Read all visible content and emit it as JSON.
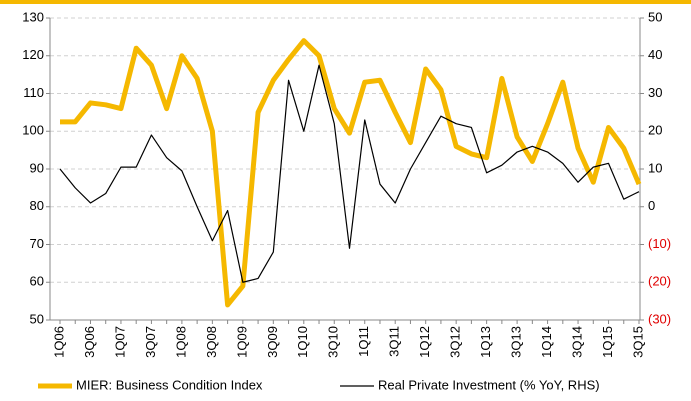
{
  "chart_data": {
    "type": "line",
    "categories": [
      "1Q06",
      null,
      "3Q06",
      null,
      "1Q07",
      null,
      "3Q07",
      null,
      "1Q08",
      null,
      "3Q08",
      null,
      "1Q09",
      null,
      "3Q09",
      null,
      "1Q10",
      null,
      "3Q10",
      null,
      "1Q11",
      null,
      "3Q11",
      null,
      "1Q12",
      null,
      "3Q12",
      null,
      "1Q13",
      null,
      "3Q13",
      null,
      "1Q14",
      null,
      "3Q14",
      null,
      "1Q15",
      null,
      "3Q15"
    ],
    "series": [
      {
        "name": "MIER: Business Condition Index",
        "color": "#f5b800",
        "values": [
          102.5,
          102.5,
          107.5,
          107,
          106,
          122,
          117.5,
          106,
          120,
          114,
          100,
          54,
          59,
          105,
          113.5,
          119,
          124,
          120,
          106,
          99.5,
          113,
          113.5,
          105,
          97,
          116.5,
          111,
          96,
          94,
          93,
          114,
          98.5,
          92,
          102,
          113,
          95.5,
          86.5,
          101,
          95.5,
          86
        ]
      },
      {
        "name": "Real Private Investment (% YoY, RHS)",
        "color": "#000000",
        "axis": "y2",
        "values": [
          10,
          5,
          1,
          3.5,
          10.5,
          10.5,
          19,
          13,
          9.5,
          0,
          -9,
          -1,
          -20,
          -19,
          -12,
          33.5,
          20,
          37.5,
          22,
          -11,
          23,
          6,
          1,
          10,
          17,
          24,
          22,
          21,
          9,
          11,
          14.5,
          16,
          14.5,
          11.5,
          6.5,
          10.5,
          11.5,
          2,
          4
        ]
      }
    ],
    "ylim": [
      50,
      130
    ],
    "yticks": [
      50,
      60,
      70,
      80,
      90,
      100,
      110,
      120,
      130
    ],
    "y2lim": [
      -30,
      50
    ],
    "y2ticks": [
      {
        "value": -30,
        "label": "(30)"
      },
      {
        "value": -20,
        "label": "(20)"
      },
      {
        "value": -10,
        "label": "(10)"
      },
      0,
      10,
      20,
      30,
      40,
      50
    ],
    "y2tick_negative_color": "#e00000",
    "grid": true,
    "legend": "bottom"
  }
}
